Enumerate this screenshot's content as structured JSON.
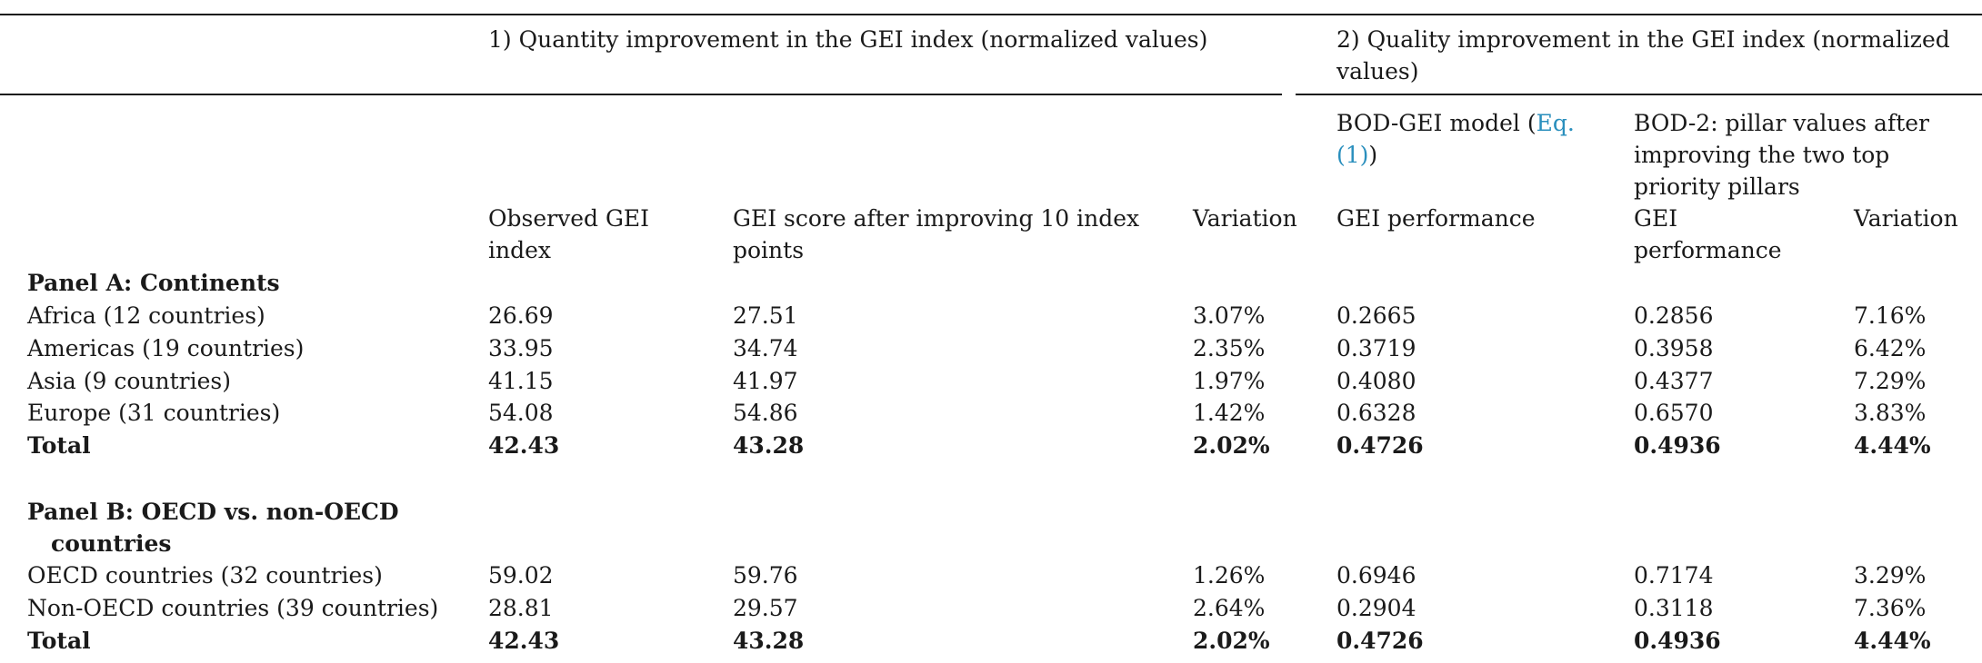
{
  "header": {
    "group1": "1) Quantity improvement in the GEI index (normalized values)",
    "group2_line1": "2) Quality improvement in the GEI index (normalized",
    "group2_line2": "values)",
    "bod_gei_prefix": "BOD-GEI model (",
    "bod_gei_eq_part1": "Eq.",
    "bod_gei_eq_part2": "(1)",
    "bod_gei_suffix": ")",
    "bod2_line1": "BOD-2: pillar values after",
    "bod2_line2": "improving the two top",
    "bod2_line3": "priority pillars",
    "col_observed_line1": "Observed GEI",
    "col_observed_line2": "index",
    "col_after_line1": "GEI score after improving 10 index",
    "col_after_line2": "points",
    "col_variation": "Variation",
    "col_gei_perf": "GEI performance",
    "col_gei_perf2_line1": "GEI",
    "col_gei_perf2_line2": "performance",
    "col_variation2": "Variation"
  },
  "panels": [
    {
      "title_line1": "Panel A: Continents",
      "title_line2": "",
      "rows": [
        {
          "label": "Africa (12 countries)",
          "observed": "26.69",
          "after": "27.51",
          "variation": "3.07%",
          "gei_perf": "0.2665",
          "bod2_perf": "0.2856",
          "variation2": "7.16%"
        },
        {
          "label": "Americas (19 countries)",
          "observed": "33.95",
          "after": "34.74",
          "variation": "2.35%",
          "gei_perf": "0.3719",
          "bod2_perf": "0.3958",
          "variation2": "6.42%"
        },
        {
          "label": "Asia (9 countries)",
          "observed": "41.15",
          "after": "41.97",
          "variation": "1.97%",
          "gei_perf": "0.4080",
          "bod2_perf": "0.4377",
          "variation2": "7.29%"
        },
        {
          "label": "Europe (31 countries)",
          "observed": "54.08",
          "after": "54.86",
          "variation": "1.42%",
          "gei_perf": "0.6328",
          "bod2_perf": "0.6570",
          "variation2": "3.83%"
        },
        {
          "label": "Total",
          "observed": "42.43",
          "after": "43.28",
          "variation": "2.02%",
          "gei_perf": "0.4726",
          "bod2_perf": "0.4936",
          "variation2": "4.44%"
        }
      ]
    },
    {
      "title_line1": "Panel B: OECD vs. non-OECD",
      "title_line2": "countries",
      "rows": [
        {
          "label": "OECD countries (32 countries)",
          "observed": "59.02",
          "after": "59.76",
          "variation": "1.26%",
          "gei_perf": "0.6946",
          "bod2_perf": "0.7174",
          "variation2": "3.29%"
        },
        {
          "label": "Non-OECD countries (39 countries)",
          "observed": "28.81",
          "after": "29.57",
          "variation": "2.64%",
          "gei_perf": "0.2904",
          "bod2_perf": "0.3118",
          "variation2": "7.36%"
        },
        {
          "label": "Total",
          "observed": "42.43",
          "after": "43.28",
          "variation": "2.02%",
          "gei_perf": "0.4726",
          "bod2_perf": "0.4936",
          "variation2": "4.44%"
        }
      ]
    }
  ]
}
